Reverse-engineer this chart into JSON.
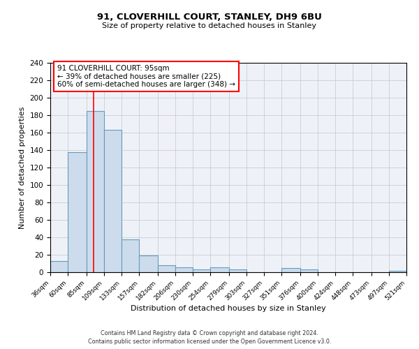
{
  "title": "91, CLOVERHILL COURT, STANLEY, DH9 6BU",
  "subtitle": "Size of property relative to detached houses in Stanley",
  "xlabel": "Distribution of detached houses by size in Stanley",
  "ylabel": "Number of detached properties",
  "bin_edges": [
    36,
    60,
    85,
    109,
    133,
    157,
    182,
    206,
    230,
    254,
    279,
    303,
    327,
    351,
    376,
    400,
    424,
    448,
    473,
    497,
    521
  ],
  "bin_counts": [
    13,
    138,
    185,
    163,
    38,
    19,
    8,
    6,
    3,
    6,
    3,
    0,
    0,
    5,
    3,
    0,
    0,
    0,
    0,
    2
  ],
  "bar_facecolor": "#ccdcec",
  "bar_edgecolor": "#6699bb",
  "grid_color": "#cccccc",
  "background_color": "#eef2f8",
  "red_line_x": 95,
  "annotation_title": "91 CLOVERHILL COURT: 95sqm",
  "annotation_line1": "← 39% of detached houses are smaller (225)",
  "annotation_line2": "60% of semi-detached houses are larger (348) →",
  "footer1": "Contains HM Land Registry data © Crown copyright and database right 2024.",
  "footer2": "Contains public sector information licensed under the Open Government Licence v3.0.",
  "ylim": [
    0,
    240
  ],
  "yticks": [
    0,
    20,
    40,
    60,
    80,
    100,
    120,
    140,
    160,
    180,
    200,
    220,
    240
  ]
}
